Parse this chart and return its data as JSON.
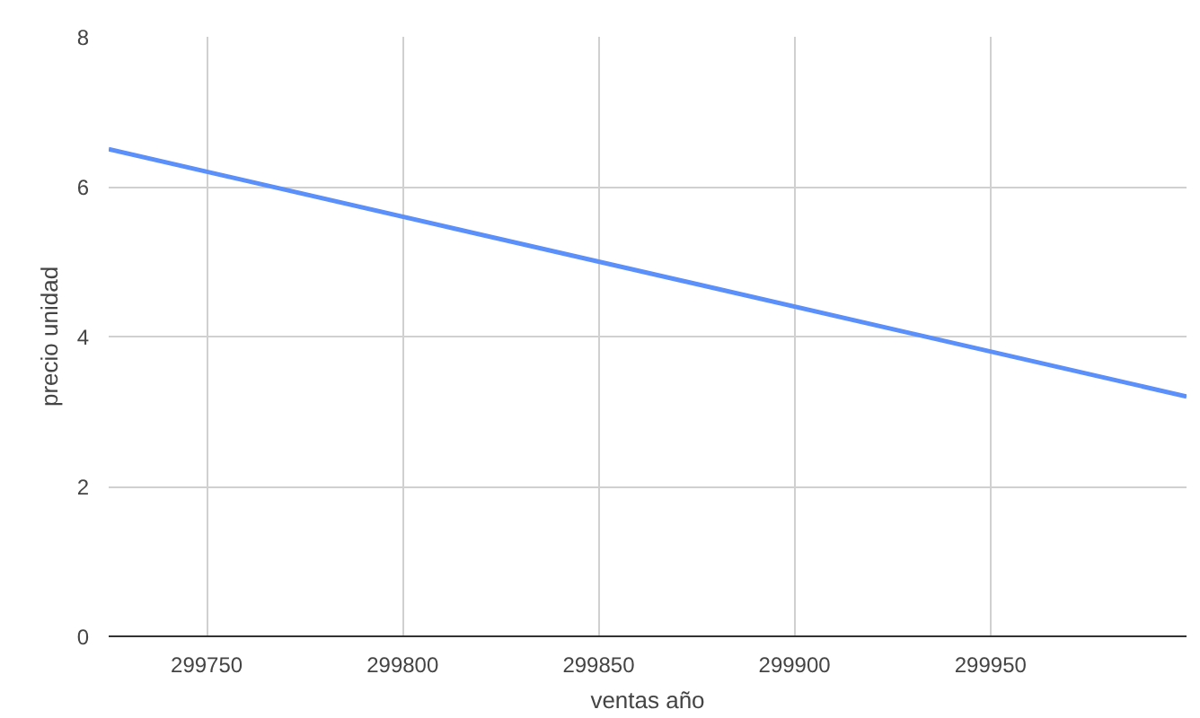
{
  "chart_data": {
    "type": "line",
    "xlabel": "ventas año",
    "ylabel": "precio unidad",
    "x": [
      299725,
      300000
    ],
    "series": [
      {
        "color": "#5b8ff9",
        "values": [
          6.5,
          3.2
        ]
      }
    ],
    "xlim": [
      299725,
      300000
    ],
    "ylim": [
      0,
      8
    ],
    "xticks": [
      299750,
      299800,
      299850,
      299900,
      299950
    ],
    "yticks": [
      0,
      2,
      4,
      6,
      8
    ],
    "grid": true,
    "marker": "none",
    "line_style": "solid"
  }
}
